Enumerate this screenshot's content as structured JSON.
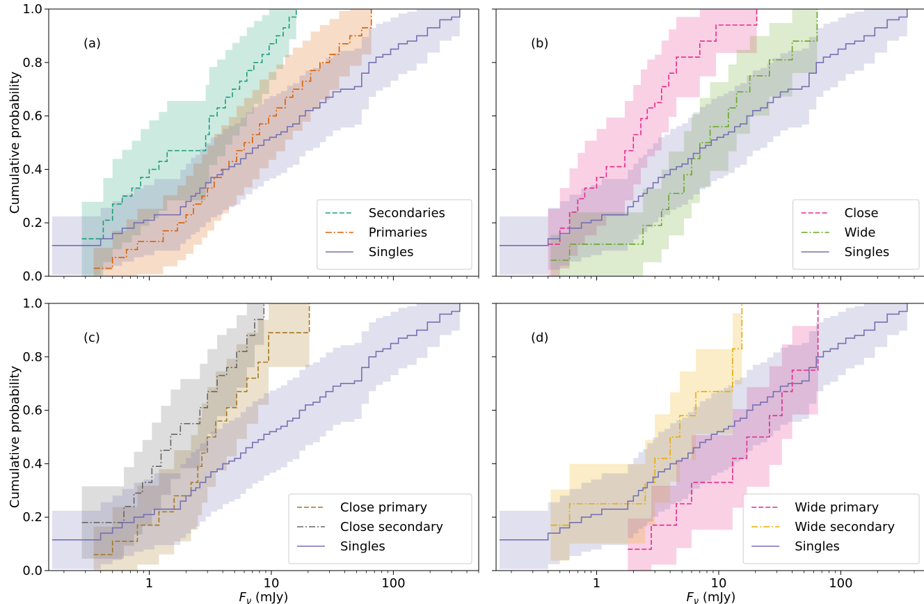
{
  "figure": {
    "ylabel": "Cumulative probability",
    "xlabel_main": "F",
    "xlabel_sub": "ν",
    "xlabel_unit": " (mJy)",
    "xscale": "log",
    "xlim": [
      0.15,
      500
    ],
    "ylim": [
      0,
      1
    ],
    "x_ticks": [
      1,
      10,
      100
    ],
    "x_tick_labels": [
      "1",
      "10",
      "100"
    ],
    "y_ticks": [
      0,
      0.2,
      0.4,
      0.6,
      0.8,
      1.0
    ],
    "y_tick_labels": [
      "0.0",
      "0.2",
      "0.4",
      "0.6",
      "0.8",
      "1.0"
    ]
  },
  "chart_data": [
    {
      "type": "line",
      "panel": "(a)",
      "legend_position": "lower-right",
      "series": [
        {
          "name": "Secondaries",
          "color": "#1b9e77",
          "dash": "dashed",
          "x": [
            0.28,
            0.32,
            0.42,
            0.5,
            0.6,
            0.72,
            0.85,
            1.0,
            1.2,
            1.4,
            1.7,
            2.1,
            2.6,
            2.9,
            3.1,
            3.6,
            4.2,
            4.8,
            5.5,
            6.3,
            7.2,
            8.4,
            9.6,
            11,
            12.5,
            14,
            16
          ],
          "y": [
            0.14,
            0.14,
            0.21,
            0.27,
            0.3,
            0.33,
            0.37,
            0.4,
            0.43,
            0.47,
            0.47,
            0.47,
            0.47,
            0.53,
            0.6,
            0.63,
            0.67,
            0.7,
            0.73,
            0.77,
            0.8,
            0.83,
            0.87,
            0.9,
            0.93,
            0.97,
            1.0
          ]
        },
        {
          "name": "Primaries",
          "color": "#d95f02",
          "dash": "dashdot",
          "x": [
            0.35,
            0.5,
            0.65,
            0.8,
            1.0,
            1.3,
            1.7,
            2.0,
            2.3,
            2.7,
            3.0,
            3.4,
            3.9,
            4.5,
            5.2,
            6.0,
            7.0,
            8.0,
            9.5,
            11,
            13,
            15,
            18,
            21,
            25,
            30,
            36,
            44,
            55,
            66
          ],
          "y": [
            0.03,
            0.07,
            0.1,
            0.13,
            0.13,
            0.17,
            0.2,
            0.23,
            0.27,
            0.3,
            0.33,
            0.37,
            0.4,
            0.43,
            0.47,
            0.5,
            0.53,
            0.57,
            0.6,
            0.63,
            0.67,
            0.7,
            0.73,
            0.77,
            0.8,
            0.83,
            0.87,
            0.9,
            0.93,
            1.0
          ]
        },
        {
          "name": "Singles",
          "color": "#7570b3",
          "dash": "solid",
          "ref": "singles"
        }
      ]
    },
    {
      "type": "line",
      "panel": "(b)",
      "legend_position": "lower-right",
      "series": [
        {
          "name": "Close",
          "color": "#e7298a",
          "dash": "dashed",
          "x": [
            0.4,
            0.5,
            0.6,
            0.7,
            0.8,
            1.0,
            1.2,
            1.4,
            1.7,
            2.0,
            2.3,
            2.6,
            3.0,
            3.4,
            3.9,
            4.5,
            5.2,
            6.0,
            7.0,
            8.0,
            9.5,
            11,
            13,
            16,
            18,
            20.5
          ],
          "y": [
            0.12,
            0.18,
            0.24,
            0.29,
            0.33,
            0.37,
            0.41,
            0.41,
            0.47,
            0.53,
            0.59,
            0.63,
            0.65,
            0.71,
            0.76,
            0.82,
            0.82,
            0.82,
            0.88,
            0.88,
            0.94,
            0.94,
            0.94,
            0.94,
            0.94,
            1.0
          ]
        },
        {
          "name": "Wide",
          "color": "#66a61e",
          "dash": "dashdot",
          "x": [
            0.42,
            0.6,
            0.9,
            1.2,
            1.6,
            2.0,
            2.4,
            2.7,
            3.0,
            3.4,
            3.9,
            4.5,
            5.2,
            6.0,
            7.0,
            8.5,
            10,
            12,
            14,
            18,
            22,
            26,
            32,
            40,
            50,
            64
          ],
          "y": [
            0.06,
            0.12,
            0.12,
            0.12,
            0.12,
            0.12,
            0.19,
            0.19,
            0.19,
            0.25,
            0.31,
            0.31,
            0.38,
            0.44,
            0.5,
            0.56,
            0.56,
            0.63,
            0.69,
            0.75,
            0.75,
            0.81,
            0.81,
            0.88,
            0.88,
            1.0
          ]
        },
        {
          "name": "Singles",
          "color": "#7570b3",
          "dash": "solid",
          "ref": "singles"
        }
      ]
    },
    {
      "type": "line",
      "panel": "(c)",
      "legend_position": "lower-right",
      "series": [
        {
          "name": "Close primary",
          "color": "#a6761d",
          "dash": "dashed",
          "x": [
            0.35,
            0.5,
            0.8,
            1.2,
            1.6,
            2.2,
            2.5,
            2.7,
            3.0,
            3.5,
            4.3,
            5.2,
            6.3,
            7.8,
            9.5,
            20.5
          ],
          "y": [
            0.06,
            0.11,
            0.17,
            0.22,
            0.28,
            0.33,
            0.39,
            0.44,
            0.5,
            0.56,
            0.61,
            0.67,
            0.72,
            0.78,
            0.89,
            1.0
          ]
        },
        {
          "name": "Close secondary",
          "color": "#666666",
          "dash": "dashdot",
          "x": [
            0.28,
            0.5,
            0.62,
            0.75,
            0.88,
            1.05,
            1.25,
            1.5,
            1.8,
            2.2,
            2.6,
            3.0,
            3.6,
            4.3,
            5.2,
            6.3,
            7.3,
            8.7
          ],
          "y": [
            0.18,
            0.18,
            0.24,
            0.29,
            0.33,
            0.39,
            0.45,
            0.51,
            0.55,
            0.55,
            0.61,
            0.67,
            0.73,
            0.76,
            0.82,
            0.88,
            0.94,
            1.0
          ]
        },
        {
          "name": "Singles",
          "color": "#7570b3",
          "dash": "solid",
          "ref": "singles"
        }
      ]
    },
    {
      "type": "line",
      "panel": "(d)",
      "legend_position": "lower-right",
      "series": [
        {
          "name": "Wide primary",
          "color": "#e7298a",
          "dash": "dashed",
          "x": [
            1.8,
            2.8,
            4.5,
            6.0,
            8.0,
            10,
            13,
            17,
            20,
            26,
            33,
            40,
            50,
            65
          ],
          "y": [
            0.08,
            0.17,
            0.25,
            0.33,
            0.33,
            0.33,
            0.42,
            0.5,
            0.5,
            0.58,
            0.67,
            0.75,
            0.75,
            1.0
          ]
        },
        {
          "name": "Wide secondary",
          "color": "#e6ab02",
          "dash": "dashdot",
          "x": [
            0.42,
            0.6,
            1.0,
            1.4,
            1.9,
            2.5,
            3.0,
            4.0,
            4.8,
            6.5,
            8.5,
            13,
            15.5
          ],
          "y": [
            0.17,
            0.25,
            0.25,
            0.25,
            0.25,
            0.33,
            0.42,
            0.5,
            0.58,
            0.67,
            0.67,
            0.83,
            1.0
          ]
        },
        {
          "name": "Singles",
          "color": "#7570b3",
          "dash": "solid",
          "ref": "singles"
        }
      ]
    }
  ],
  "singles": {
    "name": "Singles",
    "color": "#7570b3",
    "x": [
      0.16,
      0.3,
      0.4,
      0.5,
      0.6,
      0.75,
      0.9,
      1.1,
      1.3,
      1.5,
      1.8,
      2.0,
      2.2,
      2.4,
      2.6,
      2.9,
      3.2,
      3.6,
      4.0,
      4.5,
      5.0,
      5.6,
      6.2,
      7.0,
      7.8,
      8.7,
      9.7,
      11,
      12,
      13.5,
      15,
      17,
      19,
      22,
      25,
      28,
      32,
      37,
      42,
      48,
      55,
      63,
      72,
      82,
      95,
      110,
      130,
      155,
      190,
      240,
      300,
      350
    ],
    "y": [
      0.115,
      0.115,
      0.14,
      0.16,
      0.18,
      0.2,
      0.21,
      0.23,
      0.23,
      0.23,
      0.26,
      0.28,
      0.3,
      0.31,
      0.33,
      0.35,
      0.37,
      0.38,
      0.4,
      0.41,
      0.42,
      0.44,
      0.46,
      0.48,
      0.49,
      0.51,
      0.52,
      0.53,
      0.54,
      0.56,
      0.57,
      0.6,
      0.62,
      0.63,
      0.65,
      0.67,
      0.69,
      0.7,
      0.7,
      0.71,
      0.76,
      0.8,
      0.82,
      0.83,
      0.85,
      0.87,
      0.88,
      0.9,
      0.93,
      0.96,
      0.97,
      1.0
    ]
  }
}
